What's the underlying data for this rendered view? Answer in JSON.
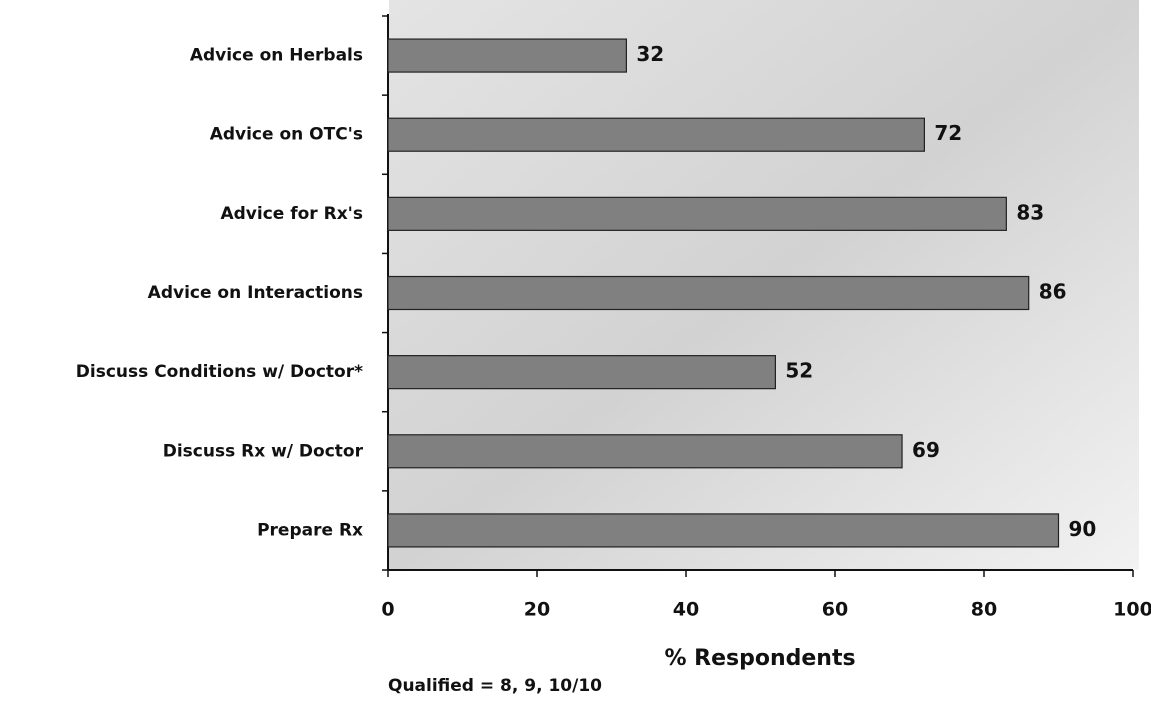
{
  "chart_data": {
    "type": "bar",
    "orientation": "horizontal",
    "categories": [
      "Advice on Herbals",
      "Advice on OTC's",
      "Advice for Rx's",
      "Advice on Interactions",
      "Discuss Conditions w/ Doctor*",
      "Discuss Rx w/ Doctor",
      "Prepare Rx"
    ],
    "values": [
      32,
      72,
      83,
      86,
      52,
      69,
      90
    ],
    "color": "#808080",
    "xlim": [
      0,
      100
    ],
    "xticks": [
      0,
      20,
      40,
      60,
      80,
      100
    ],
    "x_label": "% Respondents",
    "footnote": "Qualified = 8, 9, 10/10"
  }
}
